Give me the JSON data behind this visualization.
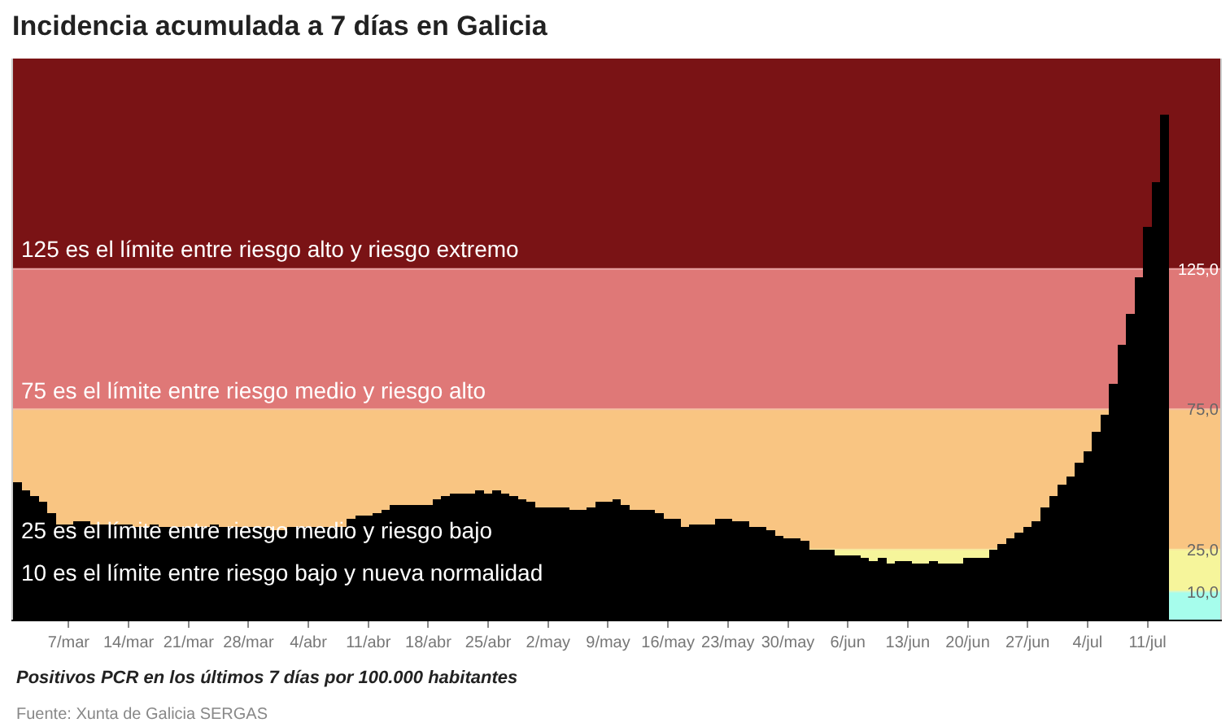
{
  "chart_data": {
    "type": "bar",
    "title": "Incidencia acumulada a 7 días en Galicia",
    "x": [
      "--03-01",
      "--03-02",
      "--03-03",
      "--03-04",
      "--03-05",
      "--03-06",
      "--03-07",
      "--03-08",
      "--03-09",
      "--03-10",
      "--03-11",
      "--03-12",
      "--03-13",
      "--03-14",
      "--03-15",
      "--03-16",
      "--03-17",
      "--03-18",
      "--03-19",
      "--03-20",
      "--03-21",
      "--03-22",
      "--03-23",
      "--03-24",
      "--03-25",
      "--03-26",
      "--03-27",
      "--03-28",
      "--03-29",
      "--03-30",
      "--03-31",
      "--04-01",
      "--04-02",
      "--04-03",
      "--04-04",
      "--04-05",
      "--04-06",
      "--04-07",
      "--04-08",
      "--04-09",
      "--04-10",
      "--04-11",
      "--04-12",
      "--04-13",
      "--04-14",
      "--04-15",
      "--04-16",
      "--04-17",
      "--04-18",
      "--04-19",
      "--04-20",
      "--04-21",
      "--04-22",
      "--04-23",
      "--04-24",
      "--04-25",
      "--04-26",
      "--04-27",
      "--04-28",
      "--04-29",
      "--04-30",
      "--05-01",
      "--05-02",
      "--05-03",
      "--05-04",
      "--05-05",
      "--05-06",
      "--05-07",
      "--05-08",
      "--05-09",
      "--05-10",
      "--05-11",
      "--05-12",
      "--05-13",
      "--05-14",
      "--05-15",
      "--05-16",
      "--05-17",
      "--05-18",
      "--05-19",
      "--05-20",
      "--05-21",
      "--05-22",
      "--05-23",
      "--05-24",
      "--05-25",
      "--05-26",
      "--05-27",
      "--05-28",
      "--05-29",
      "--05-30",
      "--05-31",
      "--06-01",
      "--06-02",
      "--06-03",
      "--06-04",
      "--06-05",
      "--06-06",
      "--06-07",
      "--06-08",
      "--06-09",
      "--06-10",
      "--06-11",
      "--06-12",
      "--06-13",
      "--06-14",
      "--06-15",
      "--06-16",
      "--06-17",
      "--06-18",
      "--06-19",
      "--06-20",
      "--06-21",
      "--06-22",
      "--06-23",
      "--06-24",
      "--06-25",
      "--06-26",
      "--06-27",
      "--06-28",
      "--06-29",
      "--06-30",
      "--07-01",
      "--07-02",
      "--07-03",
      "--07-04",
      "--07-05",
      "--07-06",
      "--07-07",
      "--07-08",
      "--07-09",
      "--07-10",
      "--07-11",
      "--07-12",
      "--07-13"
    ],
    "values": [
      49,
      46,
      44,
      42,
      38,
      34,
      34,
      35,
      35,
      34,
      34,
      34,
      34,
      34,
      33,
      33,
      34,
      33,
      33,
      33,
      33,
      33,
      33,
      34,
      33,
      33,
      33,
      33,
      33,
      33,
      32,
      32,
      33,
      33,
      33,
      33,
      33,
      33,
      33,
      36,
      37,
      37,
      38,
      39,
      41,
      41,
      41,
      41,
      41,
      43,
      44,
      45,
      45,
      45,
      46,
      45,
      46,
      45,
      44,
      43,
      42,
      40,
      40,
      40,
      40,
      39,
      39,
      40,
      42,
      42,
      43,
      41,
      39,
      39,
      39,
      38,
      36,
      36,
      33,
      34,
      34,
      34,
      36,
      36,
      35,
      35,
      33,
      33,
      32,
      30,
      29,
      29,
      28,
      25,
      25,
      25,
      23,
      23,
      23,
      22,
      21,
      22,
      20,
      21,
      21,
      20,
      20,
      21,
      20,
      20,
      20,
      22,
      22,
      22,
      25,
      27,
      29,
      31,
      33,
      35,
      40,
      44,
      48,
      51,
      56,
      60,
      67,
      73,
      84,
      98,
      109,
      122,
      140,
      156,
      180
    ],
    "color": "#000000",
    "xlim": [
      "--02-28T12:00",
      "--07-19T12:00"
    ],
    "xticks": [
      {
        "value": "--03-07",
        "label": "7/mar"
      },
      {
        "value": "--03-14",
        "label": "14/mar"
      },
      {
        "value": "--03-21",
        "label": "21/mar"
      },
      {
        "value": "--03-28",
        "label": "28/mar"
      },
      {
        "value": "--04-04",
        "label": "4/abr"
      },
      {
        "value": "--04-11",
        "label": "11/abr"
      },
      {
        "value": "--04-18",
        "label": "18/abr"
      },
      {
        "value": "--04-25",
        "label": "25/abr"
      },
      {
        "value": "--05-02",
        "label": "2/may"
      },
      {
        "value": "--05-09",
        "label": "9/may"
      },
      {
        "value": "--05-16",
        "label": "16/may"
      },
      {
        "value": "--05-23",
        "label": "23/may"
      },
      {
        "value": "--05-30",
        "label": "30/may"
      },
      {
        "value": "--06-06",
        "label": "6/jun"
      },
      {
        "value": "--06-13",
        "label": "13/jun"
      },
      {
        "value": "--06-20",
        "label": "20/jun"
      },
      {
        "value": "--06-27",
        "label": "27/jun"
      },
      {
        "value": "--07-04",
        "label": "4/jul"
      },
      {
        "value": "--07-11",
        "label": "11/jul"
      }
    ],
    "ylim": [
      0,
      200
    ],
    "yticks": [
      {
        "value": 10,
        "label": "10,0"
      },
      {
        "value": 25,
        "label": "25,0"
      },
      {
        "value": 75,
        "label": "75,0"
      },
      {
        "value": 125,
        "label": "125,0"
      }
    ],
    "bands": [
      {
        "axis": "y",
        "from": 0,
        "to": 10,
        "color": "#a6fdec"
      },
      {
        "axis": "y",
        "from": 10,
        "to": 25,
        "color": "#f6f59b"
      },
      {
        "axis": "y",
        "from": 25,
        "to": 75,
        "color": "#f9c582"
      },
      {
        "axis": "y",
        "from": 75,
        "to": 125,
        "color": "#df7877"
      },
      {
        "axis": "y",
        "from": 125,
        "to": 200,
        "color": "#7a1315"
      }
    ],
    "ref_lines": [
      {
        "axis": "y",
        "value": 125,
        "label": "125 es el límite entre riesgo alto y riesgo extremo",
        "color": "#e9a3a3"
      },
      {
        "axis": "y",
        "value": 75,
        "label": "75 es el límite entre riesgo medio y riesgo alto",
        "color": "#f4c0a4"
      },
      {
        "axis": "y",
        "value": 25,
        "label": "25 es el límite entre riesgo medio y riesgo bajo",
        "color": "#f8e8a0"
      },
      {
        "axis": "y",
        "value": 10,
        "label": "10 es el límite entre riesgo bajo y nueva normalidad",
        "color": "#d0f8d0"
      }
    ],
    "annotations": [
      "Positivos PCR en los últimos 7 días por 100.000 habitantes",
      "Fuente: Xunta de Galicia SERGAS"
    ],
    "grid": false,
    "legend": false
  }
}
